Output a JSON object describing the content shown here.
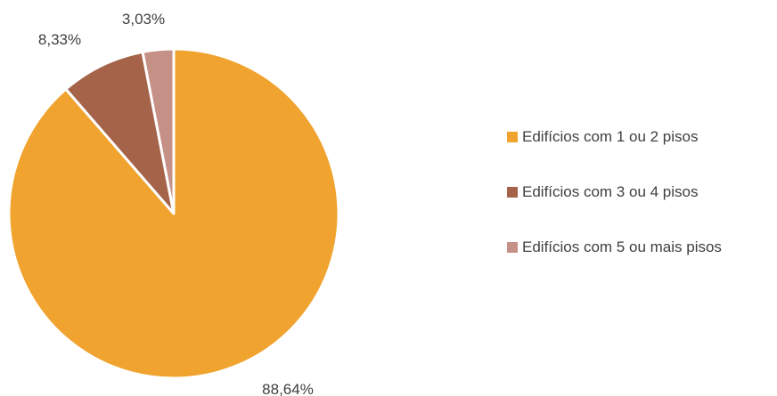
{
  "chart_data": {
    "type": "pie",
    "title": "",
    "slices": [
      {
        "name": "Edifícios com 1 ou 2 pisos",
        "value": 88.64,
        "label": "88,64%",
        "color": "#F0A32E"
      },
      {
        "name": "Edifícios com 3 ou 4 pisos",
        "value": 8.33,
        "label": "8,33%",
        "color": "#A5634A"
      },
      {
        "name": "Edifícios com 5 ou mais pisos",
        "value": 3.03,
        "label": "3,03%",
        "color": "#C59085"
      }
    ],
    "legend_position": "right",
    "start_angle": "12 o'clock",
    "direction": "clockwise"
  }
}
